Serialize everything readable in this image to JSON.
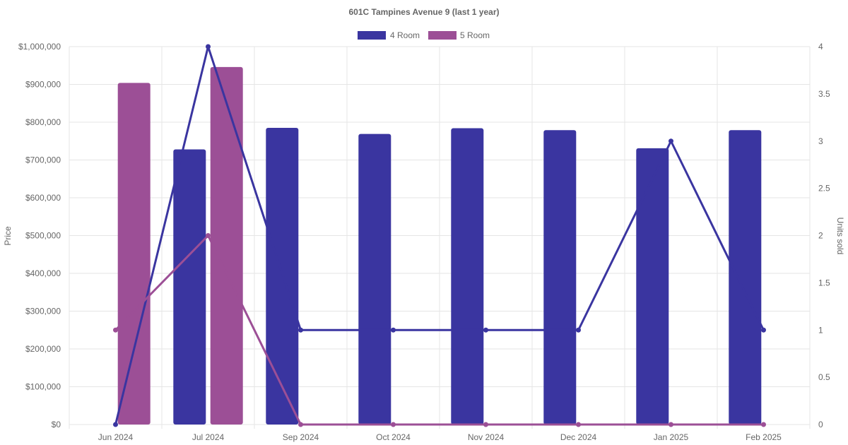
{
  "chart_data": {
    "type": "bar",
    "title": "601C Tampines Avenue 9 (last 1 year)",
    "categories": [
      "Jun 2024",
      "Jul 2024",
      "Sep 2024",
      "Oct 2024",
      "Nov 2024",
      "Dec 2024",
      "Jan 2025",
      "Feb 2025"
    ],
    "y_left": {
      "label": "Price",
      "min": 0,
      "max": 1000000,
      "ticks": [
        "$0",
        "$100,000",
        "$200,000",
        "$300,000",
        "$400,000",
        "$500,000",
        "$600,000",
        "$700,000",
        "$800,000",
        "$900,000",
        "$1,000,000"
      ]
    },
    "y_right": {
      "label": "Units sold",
      "min": 0,
      "max": 4,
      "ticks": [
        "0",
        "0.5",
        "1",
        "1.5",
        "2",
        "2.5",
        "3",
        "3.5",
        "4"
      ]
    },
    "legend": {
      "position": "top"
    },
    "grid": true,
    "bar_series": [
      {
        "name": "4 Room",
        "color": "#3a35a0",
        "values": [
          null,
          728000,
          785000,
          769000,
          784000,
          779000,
          731000,
          779000
        ]
      },
      {
        "name": "5 Room",
        "color": "#9c4f96",
        "values": [
          904000,
          946000,
          null,
          null,
          null,
          null,
          null,
          null
        ]
      }
    ],
    "line_series": [
      {
        "color": "#3a35a0",
        "values": [
          0,
          4,
          1,
          1,
          1,
          1,
          3,
          1
        ]
      },
      {
        "color": "#9c4f96",
        "values": [
          1,
          2,
          0,
          0,
          0,
          0,
          0,
          0
        ]
      }
    ]
  }
}
